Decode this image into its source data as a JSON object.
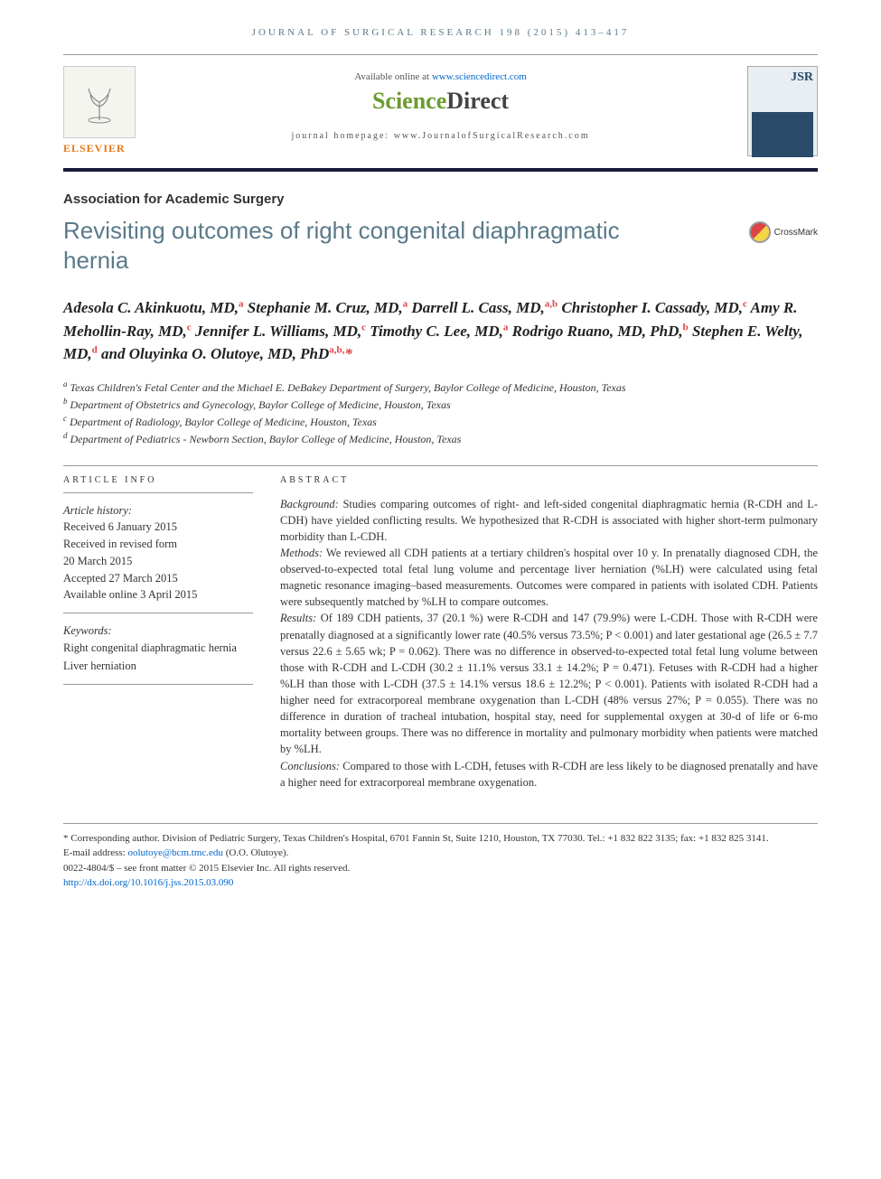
{
  "running_head": "JOURNAL OF SURGICAL RESEARCH 198 (2015) 413–417",
  "header": {
    "available_prefix": "Available online at ",
    "available_link": "www.sciencedirect.com",
    "sd_sci": "Science",
    "sd_dir": "Direct",
    "homepage_label": "journal homepage: www.JournalofSurgicalResearch.com",
    "elsevier_label": "ELSEVIER",
    "cover_abbrev": "JSR"
  },
  "section_label": "Association for Academic Surgery",
  "title": "Revisiting outcomes of right congenital diaphragmatic hernia",
  "crossmark": "CrossMark",
  "authors_html": "Adesola C. Akinkuotu, MD,<sup>a</sup> Stephanie M. Cruz, MD,<sup>a</sup> Darrell L. Cass, MD,<sup>a,b</sup> Christopher I. Cassady, MD,<sup>c</sup> Amy R. Mehollin-Ray, MD,<sup>c</sup> Jennifer L. Williams, MD,<sup>c</sup> Timothy C. Lee, MD,<sup>a</sup> Rodrigo Ruano, MD, PhD,<sup>b</sup> Stephen E. Welty, MD,<sup>d</sup> and Oluyinka O. Olutoye, MD, PhD<sup>a,b,</sup><span class=\"ast\">*</span>",
  "affiliations": [
    {
      "sup": "a",
      "text": "Texas Children's Fetal Center and the Michael E. DeBakey Department of Surgery, Baylor College of Medicine, Houston, Texas"
    },
    {
      "sup": "b",
      "text": "Department of Obstetrics and Gynecology, Baylor College of Medicine, Houston, Texas"
    },
    {
      "sup": "c",
      "text": "Department of Radiology, Baylor College of Medicine, Houston, Texas"
    },
    {
      "sup": "d",
      "text": "Department of Pediatrics - Newborn Section, Baylor College of Medicine, Houston, Texas"
    }
  ],
  "article_info": {
    "head": "ARTICLE INFO",
    "history_label": "Article history:",
    "lines": [
      "Received 6 January 2015",
      "Received in revised form",
      "20 March 2015",
      "Accepted 27 March 2015",
      "Available online 3 April 2015"
    ],
    "keywords_label": "Keywords:",
    "keywords": [
      "Right congenital diaphragmatic hernia",
      "Liver herniation"
    ]
  },
  "abstract": {
    "head": "ABSTRACT",
    "sections": [
      {
        "label": "Background:",
        "text": " Studies comparing outcomes of right- and left-sided congenital diaphragmatic hernia (R-CDH and L-CDH) have yielded conflicting results. We hypothesized that R-CDH is associated with higher short-term pulmonary morbidity than L-CDH."
      },
      {
        "label": "Methods:",
        "text": " We reviewed all CDH patients at a tertiary children's hospital over 10 y. In prenatally diagnosed CDH, the observed-to-expected total fetal lung volume and percentage liver herniation (%LH) were calculated using fetal magnetic resonance imaging–based measurements. Outcomes were compared in patients with isolated CDH. Patients were subsequently matched by %LH to compare outcomes."
      },
      {
        "label": "Results:",
        "text": " Of 189 CDH patients, 37 (20.1 %) were R-CDH and 147 (79.9%) were L-CDH. Those with R-CDH were prenatally diagnosed at a significantly lower rate (40.5% versus 73.5%; P < 0.001) and later gestational age (26.5 ± 7.7 versus 22.6 ± 5.65 wk; P = 0.062). There was no difference in observed-to-expected total fetal lung volume between those with R-CDH and L-CDH (30.2 ± 11.1% versus 33.1 ± 14.2%; P = 0.471). Fetuses with R-CDH had a higher %LH than those with L-CDH (37.5 ± 14.1% versus 18.6 ± 12.2%; P < 0.001). Patients with isolated R-CDH had a higher need for extracorporeal membrane oxygenation than L-CDH (48% versus 27%; P = 0.055). There was no difference in duration of tracheal intubation, hospital stay, need for supplemental oxygen at 30-d of life or 6-mo mortality between groups. There was no difference in mortality and pulmonary morbidity when patients were matched by %LH."
      },
      {
        "label": "Conclusions:",
        "text": " Compared to those with L-CDH, fetuses with R-CDH are less likely to be diagnosed prenatally and have a higher need for extracorporeal membrane oxygenation."
      }
    ]
  },
  "footnotes": {
    "corr": "* Corresponding author. Division of Pediatric Surgery, Texas Children's Hospital, 6701 Fannin St, Suite 1210, Houston, TX 77030. Tel.: +1 832 822 3135; fax: +1 832 825 3141.",
    "email_label": "E-mail address: ",
    "email": "oolutoye@bcm.tmc.edu",
    "email_suffix": " (O.O. Olutoye).",
    "copyright": "0022-4804/$ – see front matter © 2015 Elsevier Inc. All rights reserved.",
    "doi": "http://dx.doi.org/10.1016/j.jss.2015.03.090"
  },
  "colors": {
    "accent_blue": "#5a7a8a",
    "link_blue": "#0066cc",
    "elsevier_orange": "#e67817",
    "sd_green": "#6b9b2f",
    "sup_red": "#d44"
  }
}
